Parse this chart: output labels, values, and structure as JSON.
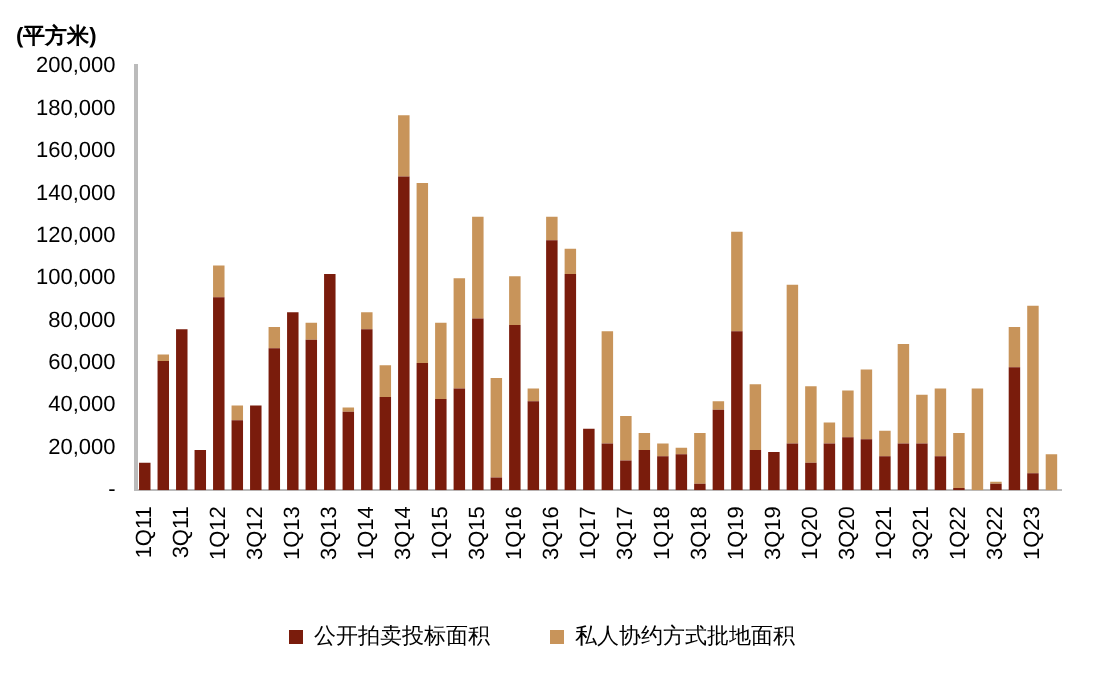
{
  "chart_data": {
    "type": "bar",
    "stacked": true,
    "ylabel": "(平方米)",
    "categories": [
      "1Q11",
      null,
      "3Q11",
      null,
      "1Q12",
      null,
      "3Q12",
      null,
      "1Q13",
      null,
      "3Q13",
      null,
      "1Q14",
      null,
      "3Q14",
      null,
      "1Q15",
      null,
      "3Q15",
      null,
      "1Q16",
      null,
      "3Q16",
      null,
      "1Q17",
      null,
      "3Q17",
      null,
      "1Q18",
      null,
      "3Q18",
      null,
      "1Q19",
      null,
      "3Q19",
      null,
      "1Q20",
      null,
      "3Q20",
      null,
      "1Q21",
      null,
      "3Q21",
      null,
      "1Q22",
      null,
      "3Q22",
      null,
      "1Q23",
      null
    ],
    "series": [
      {
        "name": "公开拍卖投标面积",
        "color": "#7a1c0c",
        "values": [
          13000,
          61000,
          76000,
          19000,
          91000,
          33000,
          40000,
          67000,
          84000,
          71000,
          102000,
          37000,
          76000,
          44000,
          148000,
          60000,
          43000,
          48000,
          81000,
          6000,
          78000,
          42000,
          118000,
          102000,
          29000,
          22000,
          14000,
          19000,
          16000,
          17000,
          3000,
          38000,
          75000,
          19000,
          18000,
          22000,
          13000,
          22000,
          25000,
          24000,
          16000,
          22000,
          22000,
          16000,
          1000,
          0,
          3000,
          58000,
          8000,
          0
        ]
      },
      {
        "name": "私人协约方式批地面积",
        "color": "#c8945a",
        "values": [
          0,
          3000,
          0,
          0,
          15000,
          7000,
          0,
          10000,
          0,
          8000,
          0,
          2000,
          8000,
          15000,
          29000,
          85000,
          36000,
          52000,
          48000,
          47000,
          23000,
          6000,
          11000,
          12000,
          0,
          53000,
          21000,
          8000,
          6000,
          3000,
          24000,
          4000,
          47000,
          31000,
          0,
          75000,
          36000,
          10000,
          22000,
          33000,
          12000,
          47000,
          23000,
          32000,
          26000,
          48000,
          1000,
          19000,
          79000,
          17000
        ]
      }
    ],
    "ylim": [
      0,
      200000
    ],
    "yticks": [
      {
        "value": 0,
        "label": "-"
      },
      {
        "value": 20000,
        "label": "20,000"
      },
      {
        "value": 40000,
        "label": "40,000"
      },
      {
        "value": 60000,
        "label": "60,000"
      },
      {
        "value": 80000,
        "label": "80,000"
      },
      {
        "value": 100000,
        "label": "100,000"
      },
      {
        "value": 120000,
        "label": "120,000"
      },
      {
        "value": 140000,
        "label": "140,000"
      },
      {
        "value": 160000,
        "label": "160,000"
      },
      {
        "value": 180000,
        "label": "180,000"
      },
      {
        "value": 200000,
        "label": "200,000"
      }
    ],
    "grid": false,
    "legend": "bottom"
  }
}
